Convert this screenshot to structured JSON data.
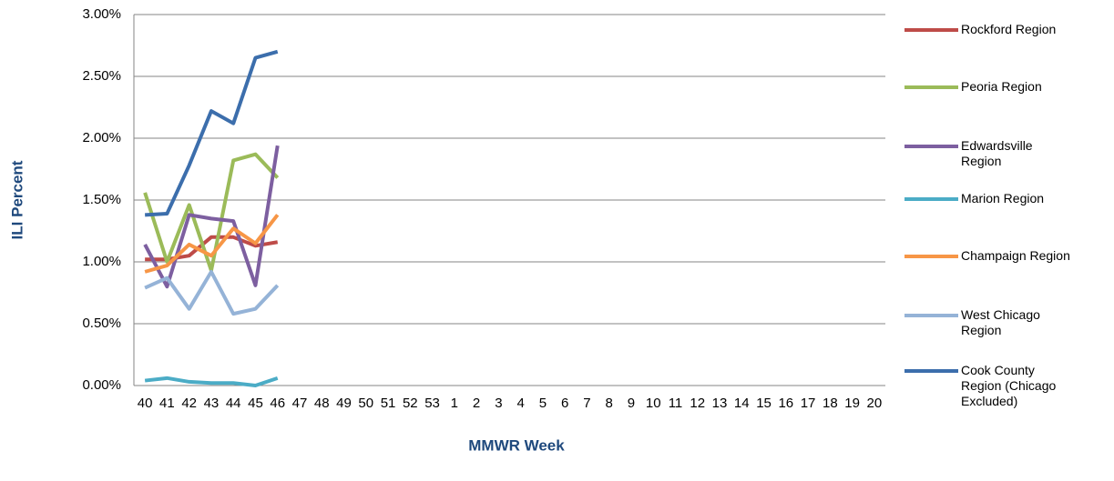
{
  "chart_data": {
    "type": "line",
    "y_label": "ILI Percent",
    "x_label": "MMWR Week",
    "categories": [
      "40",
      "41",
      "42",
      "43",
      "44",
      "45",
      "46",
      "47",
      "48",
      "49",
      "50",
      "51",
      "52",
      "53",
      "1",
      "2",
      "3",
      "4",
      "5",
      "6",
      "7",
      "8",
      "9",
      "10",
      "11",
      "12",
      "13",
      "14",
      "15",
      "16",
      "17",
      "18",
      "19",
      "20"
    ],
    "ylim": [
      0,
      3
    ],
    "yticks": [
      {
        "value": 0,
        "label": "0.00%"
      },
      {
        "value": 0.5,
        "label": "0.50%"
      },
      {
        "value": 1,
        "label": "1.00%"
      },
      {
        "value": 1.5,
        "label": "1.50%"
      },
      {
        "value": 2,
        "label": "2.00%"
      },
      {
        "value": 2.5,
        "label": "2.50%"
      },
      {
        "value": 3,
        "label": "3.00%"
      }
    ],
    "grid": true,
    "legend": "right",
    "series": [
      {
        "name": "Rockford Region",
        "color": "#be4b48",
        "values": [
          1.02,
          1.02,
          1.05,
          1.2,
          1.2,
          1.13,
          1.16,
          null,
          null,
          null,
          null,
          null,
          null,
          null,
          null,
          null,
          null,
          null,
          null,
          null,
          null,
          null,
          null,
          null,
          null,
          null,
          null,
          null,
          null,
          null,
          null,
          null,
          null,
          null
        ]
      },
      {
        "name": "Peoria Region",
        "color": "#9bbb59",
        "values": [
          1.56,
          1.0,
          1.46,
          0.93,
          1.82,
          1.87,
          1.68,
          null,
          null,
          null,
          null,
          null,
          null,
          null,
          null,
          null,
          null,
          null,
          null,
          null,
          null,
          null,
          null,
          null,
          null,
          null,
          null,
          null,
          null,
          null,
          null,
          null,
          null,
          null
        ]
      },
      {
        "name": "Edwardsville Region",
        "color": "#7d5fa0",
        "values": [
          1.14,
          0.8,
          1.38,
          1.35,
          1.33,
          0.81,
          1.94,
          null,
          null,
          null,
          null,
          null,
          null,
          null,
          null,
          null,
          null,
          null,
          null,
          null,
          null,
          null,
          null,
          null,
          null,
          null,
          null,
          null,
          null,
          null,
          null,
          null,
          null,
          null
        ]
      },
      {
        "name": "Marion Region",
        "color": "#4bacc6",
        "values": [
          0.04,
          0.06,
          0.03,
          0.02,
          0.02,
          0.0,
          0.06,
          null,
          null,
          null,
          null,
          null,
          null,
          null,
          null,
          null,
          null,
          null,
          null,
          null,
          null,
          null,
          null,
          null,
          null,
          null,
          null,
          null,
          null,
          null,
          null,
          null,
          null,
          null
        ]
      },
      {
        "name": "Champaign Region",
        "color": "#f79646",
        "values": [
          0.92,
          0.97,
          1.14,
          1.05,
          1.27,
          1.15,
          1.38,
          null,
          null,
          null,
          null,
          null,
          null,
          null,
          null,
          null,
          null,
          null,
          null,
          null,
          null,
          null,
          null,
          null,
          null,
          null,
          null,
          null,
          null,
          null,
          null,
          null,
          null,
          null
        ]
      },
      {
        "name": "West Chicago Region",
        "color": "#95b3d7",
        "values": [
          0.79,
          0.87,
          0.62,
          0.92,
          0.58,
          0.62,
          0.81,
          null,
          null,
          null,
          null,
          null,
          null,
          null,
          null,
          null,
          null,
          null,
          null,
          null,
          null,
          null,
          null,
          null,
          null,
          null,
          null,
          null,
          null,
          null,
          null,
          null,
          null,
          null
        ]
      },
      {
        "name": "Cook County Region (Chicago Excluded)",
        "color": "#3c6eac",
        "values": [
          1.38,
          1.39,
          1.78,
          2.22,
          2.12,
          2.65,
          2.7,
          null,
          null,
          null,
          null,
          null,
          null,
          null,
          null,
          null,
          null,
          null,
          null,
          null,
          null,
          null,
          null,
          null,
          null,
          null,
          null,
          null,
          null,
          null,
          null,
          null,
          null,
          null
        ]
      }
    ]
  }
}
